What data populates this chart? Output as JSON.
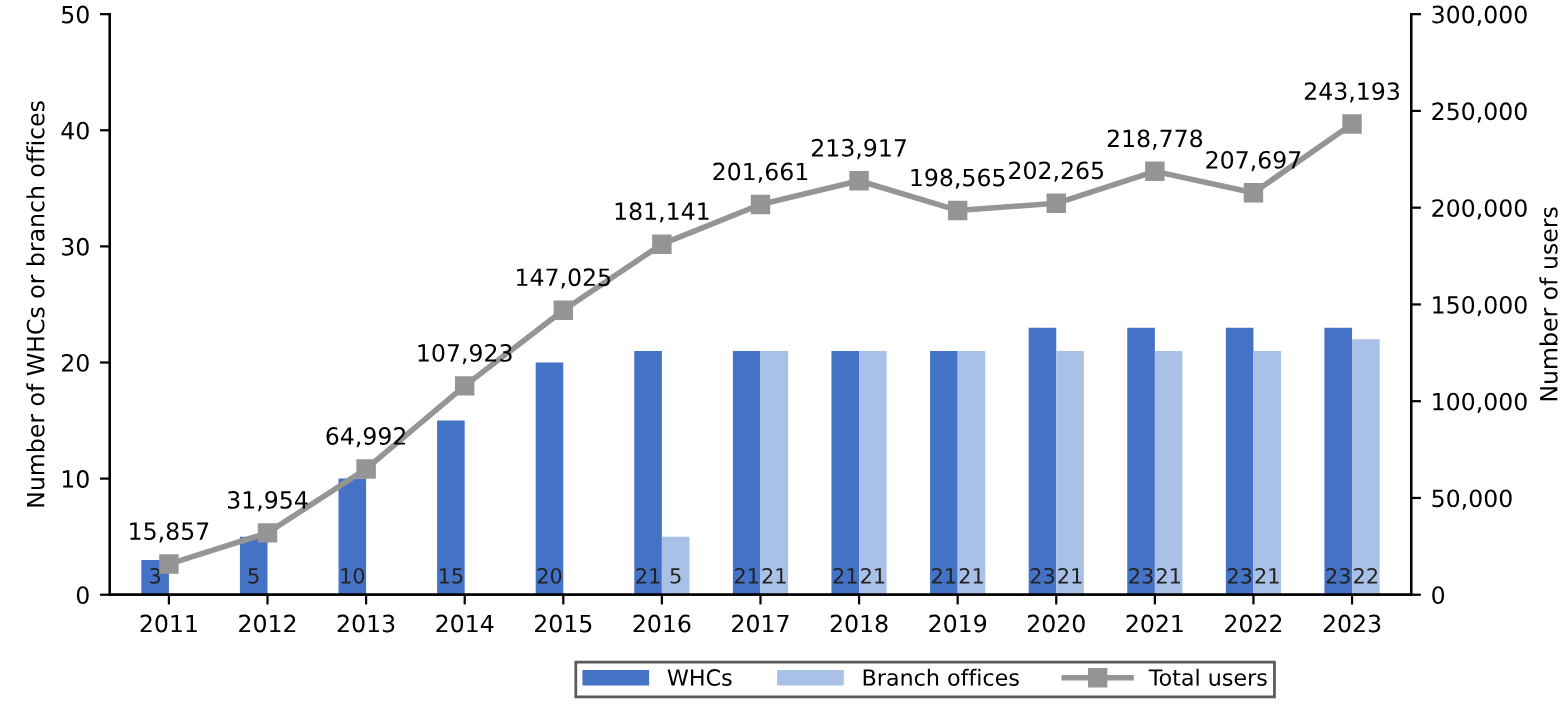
{
  "chart_data": {
    "type": "bar",
    "ylabel": "Number of WHCs or branch offices",
    "y2label": "Number of users",
    "categories": [
      "2011",
      "2012",
      "2013",
      "2014",
      "2015",
      "2016",
      "2017",
      "2018",
      "2019",
      "2020",
      "2021",
      "2022",
      "2023"
    ],
    "series": [
      {
        "name": "WHCs",
        "color": "#4472c4",
        "values": [
          3,
          5,
          10,
          15,
          20,
          21,
          21,
          21,
          21,
          23,
          23,
          23,
          23
        ]
      },
      {
        "name": "Branch offices",
        "color": "#a9c1e6",
        "values": [
          null,
          null,
          null,
          null,
          null,
          5,
          21,
          21,
          21,
          21,
          21,
          21,
          22
        ]
      },
      {
        "name": "Total users",
        "type": "line",
        "axis": "y2",
        "color": "#959595",
        "marker": "square",
        "values": [
          15857,
          31954,
          64992,
          107923,
          147025,
          181141,
          201661,
          213917,
          198565,
          202265,
          218778,
          207697,
          243193
        ],
        "value_labels": [
          "15,857",
          "31,954",
          "64,992",
          "107,923",
          "147,025",
          "181,141",
          "201,661",
          "213,917",
          "198,565",
          "202,265",
          "218,778",
          "207,697",
          "243,193"
        ]
      }
    ],
    "data_labels": true,
    "ylim": [
      0,
      50
    ],
    "yticks": [
      0,
      10,
      20,
      30,
      40,
      50
    ],
    "y2lim": [
      0,
      300000
    ],
    "y2ticks": [
      0,
      {
        "value": 50000,
        "label": "50,000"
      },
      {
        "value": 100000,
        "label": "100,000"
      },
      {
        "value": 150000,
        "label": "150,000"
      },
      {
        "value": 200000,
        "label": "200,000"
      },
      {
        "value": 250000,
        "label": "250,000"
      },
      {
        "value": 300000,
        "label": "300,000"
      }
    ],
    "grid": false,
    "legend": "bottom"
  }
}
